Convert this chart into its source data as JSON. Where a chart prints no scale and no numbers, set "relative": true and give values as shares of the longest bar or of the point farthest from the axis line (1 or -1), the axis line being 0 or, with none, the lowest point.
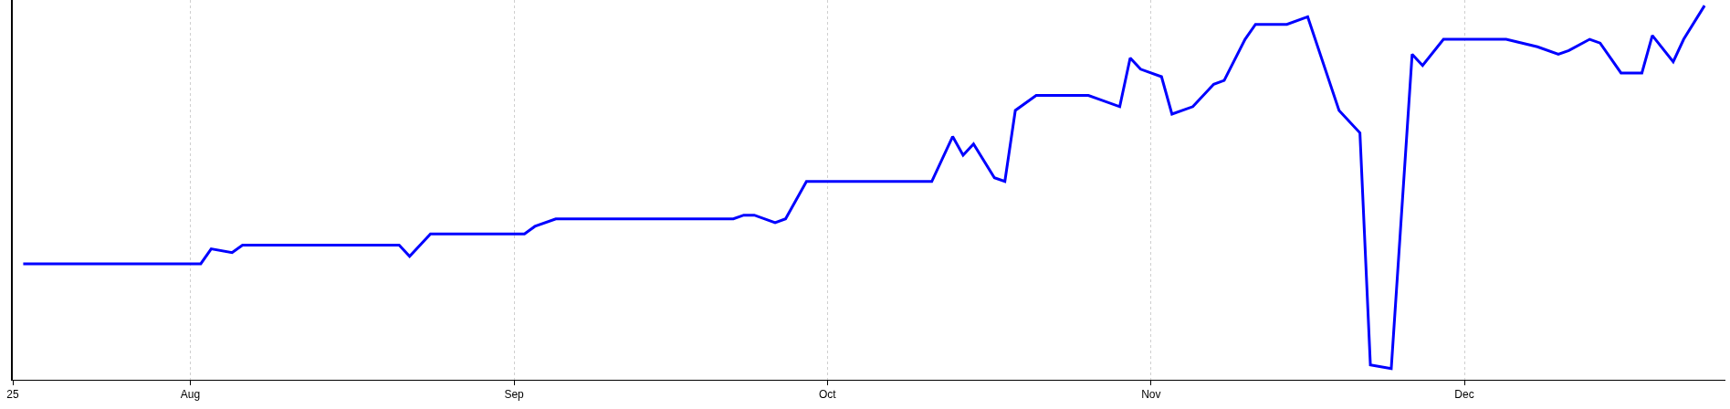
{
  "chart_data": {
    "type": "line",
    "relative": true,
    "grid": "x",
    "marker": "none",
    "line_style": "solid",
    "xlim": [
      "--07-15",
      "--12-26"
    ],
    "xticks": [
      {
        "value": "--07-15",
        "label": "25"
      },
      {
        "value": "--08-01",
        "label": "Aug"
      },
      {
        "value": "--09-01",
        "label": "Sep"
      },
      {
        "value": "--10-01",
        "label": "Oct"
      },
      {
        "value": "--11-01",
        "label": "Nov"
      },
      {
        "value": "--12-01",
        "label": "Dec"
      }
    ],
    "series": [
      {
        "color": "#0000ff",
        "x": [
          "--07-16",
          "--08-01",
          "--08-02",
          "--08-03",
          "--08-05",
          "--08-06",
          "--08-21",
          "--08-22",
          "--08-24",
          "--09-02",
          "--09-03",
          "--09-05",
          "--09-21",
          "--09-22",
          "--09-23",
          "--09-24",
          "--09-26",
          "--09-27",
          "--09-29",
          "--10-10",
          "--10-11",
          "--10-13",
          "--10-14",
          "--10-15",
          "--10-17",
          "--10-18",
          "--10-19",
          "--10-21",
          "--10-26",
          "--10-27",
          "--10-29",
          "--10-30",
          "--10-31",
          "--11-02",
          "--11-03",
          "--11-05",
          "--11-07",
          "--11-08",
          "--11-10",
          "--11-11",
          "--11-14",
          "--11-16",
          "--11-19",
          "--11-21",
          "--11-22",
          "--11-24",
          "--11-26",
          "--11-27",
          "--11-29",
          "--12-04",
          "--12-05",
          "--12-08",
          "--12-10",
          "--12-11",
          "--12-13",
          "--12-14",
          "--12-16",
          "--12-18",
          "--12-19",
          "--12-21",
          "--12-22",
          "--12-24"
        ],
        "values": [
          0.31,
          0.31,
          0.31,
          0.35,
          0.34,
          0.36,
          0.36,
          0.33,
          0.39,
          0.39,
          0.41,
          0.43,
          0.43,
          0.43,
          0.44,
          0.44,
          0.42,
          0.43,
          0.53,
          0.53,
          0.53,
          0.65,
          0.6,
          0.63,
          0.54,
          0.53,
          0.72,
          0.76,
          0.76,
          0.75,
          0.73,
          0.86,
          0.83,
          0.81,
          0.71,
          0.73,
          0.79,
          0.8,
          0.91,
          0.95,
          0.95,
          0.97,
          0.72,
          0.66,
          0.04,
          0.03,
          0.87,
          0.84,
          0.91,
          0.91,
          0.91,
          0.89,
          0.87,
          0.88,
          0.91,
          0.9,
          0.82,
          0.82,
          0.92,
          0.85,
          0.91,
          1
        ]
      }
    ]
  }
}
